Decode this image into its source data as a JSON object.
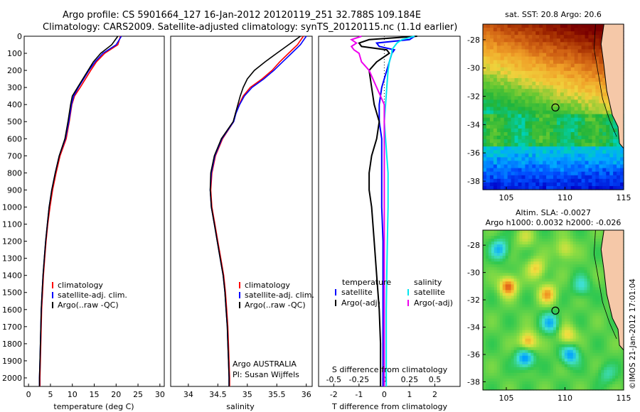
{
  "header": {
    "line1": "Argo profile: CS 5901664_127 16-Jan-2012 20120119_251 32.788S 109.184E",
    "line2": "Climatology: CARS2009. Satellite-adjusted climatology: synTS_20120115.nc (1.1d earlier)"
  },
  "colors": {
    "climatology": "#ff0000",
    "satellite": "#0000ff",
    "argo": "#000000",
    "sal_satellite": "#00e5ee",
    "sal_argo": "#ee00ee"
  },
  "chart_data": [
    {
      "type": "line",
      "xlabel": "temperature (deg C)",
      "ylabel": "",
      "xlim": [
        -1,
        31
      ],
      "ylim": [
        2050,
        0
      ],
      "xticks": [
        "0",
        "5",
        "10",
        "15",
        "20",
        "25",
        "30"
      ],
      "yticks": [
        "0",
        "100",
        "200",
        "300",
        "400",
        "500",
        "600",
        "700",
        "800",
        "900",
        "1000",
        "1100",
        "1200",
        "1300",
        "1400",
        "1500",
        "1600",
        "1700",
        "1800",
        "1900",
        "2000"
      ],
      "legend": {
        "placement": "lower-left",
        "entries": [
          "climatology",
          "satellite-adj. clim.",
          "Argo(..raw -QC)"
        ]
      },
      "depth": [
        0,
        50,
        100,
        150,
        200,
        250,
        300,
        350,
        400,
        500,
        600,
        700,
        800,
        900,
        1000,
        1100,
        1200,
        1300,
        1400,
        1500,
        1600,
        1700,
        1800,
        1900,
        2000,
        2050
      ],
      "series": [
        {
          "name": "climatology",
          "color": "#ff0000",
          "values": [
            21.0,
            20.4,
            17.4,
            15.5,
            14.2,
            13.0,
            11.8,
            10.5,
            9.9,
            9.3,
            8.6,
            7.2,
            6.3,
            5.5,
            4.9,
            4.4,
            4.0,
            3.7,
            3.4,
            3.2,
            3.0,
            2.9,
            2.8,
            2.7,
            2.6,
            2.6
          ]
        },
        {
          "name": "satellite-adj. clim.",
          "color": "#0000ff",
          "values": [
            21.2,
            20.0,
            17.0,
            15.2,
            13.8,
            12.6,
            11.4,
            10.3,
            9.8,
            9.2,
            8.4,
            7.0,
            6.1,
            5.3,
            4.7,
            4.3,
            3.9,
            3.6,
            3.3,
            3.1,
            2.9,
            2.8,
            2.7,
            2.6,
            2.5,
            2.5
          ]
        },
        {
          "name": "Argo(..raw -QC)",
          "color": "#000000",
          "values": [
            20.4,
            19.0,
            16.5,
            14.8,
            13.6,
            12.4,
            11.2,
            10.0,
            9.6,
            9.0,
            8.3,
            7.0,
            6.1,
            5.3,
            4.7,
            4.3,
            3.9,
            3.6,
            3.3,
            3.1,
            2.9,
            2.8,
            2.7,
            2.6,
            2.5,
            2.5
          ]
        }
      ]
    },
    {
      "type": "line",
      "xlabel": "salinity",
      "ylabel": "",
      "xlim": [
        33.7,
        36.1
      ],
      "ylim": [
        2050,
        0
      ],
      "xticks": [
        "34",
        "34.5",
        "35",
        "35.5",
        "36"
      ],
      "legend": {
        "placement": "lower-right",
        "entries": [
          "climatology",
          "satellite-adj. clim.",
          "Argo(..raw -QC)"
        ]
      },
      "annotation": [
        "Argo AUSTRALIA",
        "PI: Susan Wijffels"
      ],
      "depth": [
        0,
        50,
        100,
        150,
        200,
        250,
        300,
        350,
        400,
        450,
        500,
        600,
        700,
        800,
        900,
        1000,
        1100,
        1200,
        1300,
        1400,
        1500,
        1600,
        1700,
        1800,
        1900,
        2000,
        2050
      ],
      "series": [
        {
          "name": "climatology",
          "color": "#ff0000",
          "values": [
            35.95,
            35.85,
            35.7,
            35.55,
            35.42,
            35.25,
            35.05,
            34.93,
            34.86,
            34.8,
            34.77,
            34.58,
            34.46,
            34.4,
            34.38,
            34.4,
            34.45,
            34.5,
            34.55,
            34.6,
            34.63,
            34.65,
            34.67,
            34.68,
            34.69,
            34.7,
            34.7
          ]
        },
        {
          "name": "satellite-adj. clim.",
          "color": "#0000ff",
          "values": [
            36.0,
            35.9,
            35.75,
            35.6,
            35.45,
            35.28,
            35.08,
            34.95,
            34.87,
            34.81,
            34.77,
            34.57,
            34.45,
            34.39,
            34.37,
            34.39,
            34.44,
            34.49,
            34.54,
            34.59,
            34.62,
            34.64,
            34.66,
            34.67,
            34.68,
            34.69,
            34.69
          ]
        },
        {
          "name": "Argo(..raw -QC)",
          "color": "#000000",
          "values": [
            35.9,
            35.7,
            35.5,
            35.3,
            35.12,
            35.0,
            34.93,
            34.88,
            34.84,
            34.8,
            34.76,
            34.56,
            34.44,
            34.38,
            34.37,
            34.39,
            34.44,
            34.49,
            34.54,
            34.59,
            34.62,
            34.64,
            34.66,
            34.67,
            34.68,
            34.69,
            34.69
          ]
        }
      ]
    },
    {
      "type": "line",
      "xlabel": "T difference from climatology",
      "xlabel_top": "S difference from climatology",
      "xlim": [
        -2.6,
        3.0
      ],
      "ylim": [
        2050,
        0
      ],
      "xticks": [
        "-2",
        "-1",
        "0",
        "1",
        "2"
      ],
      "s_ticks": [
        "-0.5",
        "-0.25",
        "0",
        "0.25",
        "0.5"
      ],
      "legend": {
        "placement": "lower-center",
        "temperature_heading": "temperature",
        "salinity_heading": "salinity",
        "entries": [
          "satellite",
          "Argo(-adj)",
          "satellite",
          "Argo(-adj)"
        ]
      },
      "depth": [
        0,
        20,
        40,
        60,
        80,
        100,
        150,
        200,
        300,
        400,
        500,
        600,
        700,
        800,
        900,
        1000,
        1200,
        1400,
        1600,
        1800,
        2000,
        2050
      ],
      "series": [
        {
          "name": "temperature satellite",
          "color": "#0000ff",
          "values": [
            1.2,
            1.0,
            -0.3,
            -0.2,
            0.4,
            0.3,
            0.2,
            0.1,
            -0.1,
            -0.2,
            -0.2,
            -0.1,
            -0.1,
            -0.1,
            -0.1,
            -0.1,
            -0.05,
            -0.05,
            -0.05,
            -0.05,
            -0.05,
            -0.05
          ]
        },
        {
          "name": "temperature Argo(-adj)",
          "color": "#000000",
          "values": [
            1.3,
            -0.6,
            -1.0,
            -0.9,
            0.1,
            0.2,
            -0.3,
            -0.6,
            -0.5,
            -0.4,
            -0.2,
            -0.3,
            -0.5,
            -0.6,
            -0.6,
            -0.5,
            -0.4,
            -0.3,
            -0.2,
            -0.15,
            -0.15,
            -0.15
          ]
        },
        {
          "name": "salinity satellite",
          "color": "#00e5ee",
          "values": [
            1.2,
            0.7,
            0.5,
            0.4,
            0.3,
            0.3,
            0.2,
            0.15,
            0.1,
            0.05,
            0.0,
            0.05,
            0.1,
            0.15,
            0.15,
            0.15,
            0.12,
            0.1,
            0.08,
            0.08,
            0.08,
            0.08
          ]
        },
        {
          "name": "salinity Argo(-adj)",
          "color": "#ee00ee",
          "values": [
            -0.9,
            -1.3,
            -1.1,
            -1.3,
            -1.2,
            -1.0,
            -0.9,
            -0.6,
            -0.3,
            0.0,
            0.0,
            0.0,
            0.0,
            0.0,
            0.0,
            0.0,
            0.0,
            0.0,
            0.0,
            0.0,
            0.0,
            0.0
          ]
        }
      ]
    },
    {
      "type": "heatmap",
      "title": "sat. SST: 20.8  Argo: 20.6",
      "xlim": [
        103,
        115
      ],
      "ylim": [
        -38.6,
        -26.9
      ],
      "xticks": [
        "105",
        "110",
        "115"
      ],
      "yticks": [
        "-28",
        "-30",
        "-32",
        "-34",
        "-36",
        "-38"
      ],
      "marker": {
        "lon": 109.184,
        "lat": -32.788
      }
    },
    {
      "type": "heatmap",
      "title": "Altim. SLA: -0.0027",
      "subtitle": "Argo h1000: 0.0032 h2000: -0.026",
      "xlim": [
        103,
        115
      ],
      "ylim": [
        -38.6,
        -26.9
      ],
      "xticks": [
        "105",
        "110",
        "115"
      ],
      "yticks": [
        "-28",
        "-30",
        "-32",
        "-34",
        "-36",
        "-38"
      ],
      "marker": {
        "lon": 109.184,
        "lat": -32.788
      }
    }
  ],
  "credit": "©IMOS 21-Jan-2012 17:01:04"
}
